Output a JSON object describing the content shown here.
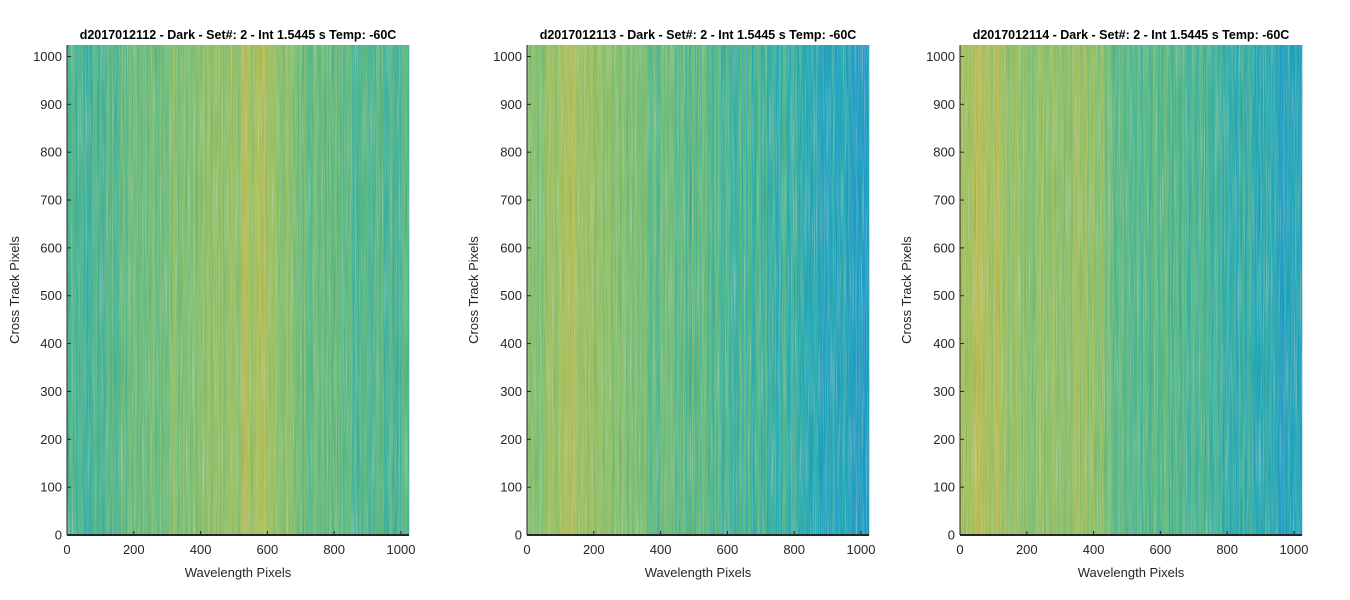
{
  "chart_data": [
    {
      "type": "heatmap",
      "title": "d2017012112 - Dark - Set#: 2 - Int 1.5445 s Temp: -60C",
      "xlabel": "Wavelength Pixels",
      "ylabel": "Cross Track Pixels",
      "xlim": [
        0,
        1024
      ],
      "ylim": [
        0,
        1024
      ],
      "xticks": [
        0,
        200,
        400,
        600,
        800,
        1000
      ],
      "yticks": [
        0,
        100,
        200,
        300,
        400,
        500,
        600,
        700,
        800,
        900,
        1000
      ],
      "column_profile": {
        "x": [
          0,
          50,
          100,
          150,
          200,
          300,
          400,
          500,
          560,
          600,
          650,
          700,
          800,
          900,
          1000,
          1024
        ],
        "level": [
          0.44,
          0.42,
          0.45,
          0.5,
          0.55,
          0.6,
          0.62,
          0.68,
          0.74,
          0.72,
          0.63,
          0.57,
          0.52,
          0.47,
          0.45,
          0.45
        ]
      }
    },
    {
      "type": "heatmap",
      "title": "d2017012113 - Dark - Set#: 2 - Int 1.5445 s Temp: -60C",
      "xlabel": "Wavelength Pixels",
      "ylabel": "Cross Track Pixels",
      "xlim": [
        0,
        1024
      ],
      "ylim": [
        0,
        1024
      ],
      "xticks": [
        0,
        200,
        400,
        600,
        800,
        1000
      ],
      "yticks": [
        0,
        100,
        200,
        300,
        400,
        500,
        600,
        700,
        800,
        900,
        1000
      ],
      "column_profile": {
        "x": [
          0,
          50,
          100,
          150,
          200,
          300,
          400,
          500,
          600,
          700,
          800,
          850,
          900,
          950,
          1000,
          1024
        ],
        "level": [
          0.6,
          0.64,
          0.72,
          0.74,
          0.68,
          0.6,
          0.53,
          0.5,
          0.47,
          0.44,
          0.4,
          0.32,
          0.3,
          0.28,
          0.27,
          0.27
        ]
      }
    },
    {
      "type": "heatmap",
      "title": "d2017012114 - Dark - Set#: 2 - Int 1.5445 s Temp: -60C",
      "xlabel": "Wavelength Pixels",
      "ylabel": "Cross Track Pixels",
      "xlim": [
        0,
        1024
      ],
      "ylim": [
        0,
        1024
      ],
      "xticks": [
        0,
        200,
        400,
        600,
        800,
        1000
      ],
      "yticks": [
        0,
        100,
        200,
        300,
        400,
        500,
        600,
        700,
        800,
        900,
        1000
      ],
      "column_profile": {
        "x": [
          0,
          50,
          100,
          150,
          200,
          300,
          380,
          450,
          500,
          600,
          700,
          800,
          900,
          950,
          1000,
          1024
        ],
        "level": [
          0.72,
          0.76,
          0.74,
          0.7,
          0.66,
          0.66,
          0.68,
          0.55,
          0.5,
          0.47,
          0.44,
          0.4,
          0.34,
          0.3,
          0.3,
          0.3
        ]
      }
    }
  ],
  "colormap": [
    "#0072bd",
    "#1e97d3",
    "#25abb8",
    "#5cbb87",
    "#96c26a",
    "#c2be51",
    "#d9b94a"
  ]
}
